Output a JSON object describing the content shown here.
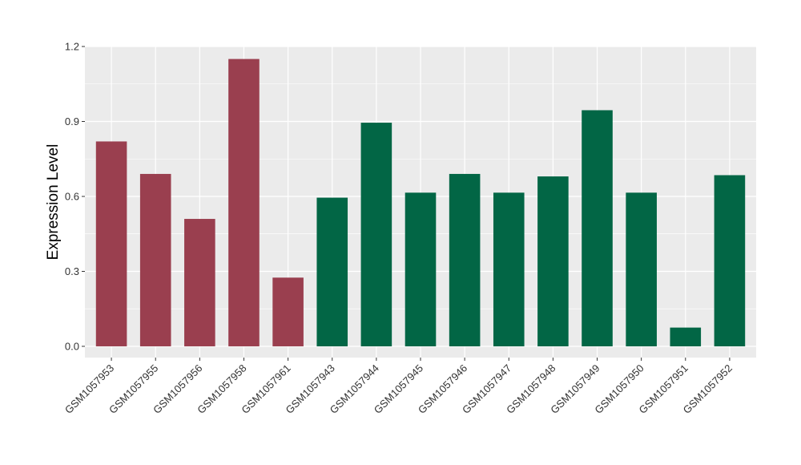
{
  "chart_data": {
    "type": "bar",
    "title": "",
    "xlabel": "",
    "ylabel": "Expression Level",
    "ylim": [
      -0.045,
      1.2
    ],
    "yticks": [
      0.0,
      0.3,
      0.6,
      0.9,
      1.2
    ],
    "ytick_labels": [
      "0.0",
      "0.3",
      "0.6",
      "0.9",
      "1.2"
    ],
    "grid": true,
    "legend": "none",
    "categories": [
      "GSM1057953",
      "GSM1057955",
      "GSM1057956",
      "GSM1057958",
      "GSM1057961",
      "GSM1057943",
      "GSM1057944",
      "GSM1057945",
      "GSM1057946",
      "GSM1057947",
      "GSM1057948",
      "GSM1057949",
      "GSM1057950",
      "GSM1057951",
      "GSM1057952"
    ],
    "values": [
      0.82,
      0.69,
      0.51,
      1.15,
      0.275,
      0.595,
      0.895,
      0.615,
      0.69,
      0.615,
      0.68,
      0.945,
      0.615,
      0.075,
      0.685
    ],
    "groups": [
      0,
      0,
      0,
      0,
      0,
      1,
      1,
      1,
      1,
      1,
      1,
      1,
      1,
      1,
      1
    ],
    "group_colors": [
      "#9a3f4f",
      "#026645"
    ],
    "panel_background": "#ebebeb",
    "grid_color": "#ffffff"
  }
}
